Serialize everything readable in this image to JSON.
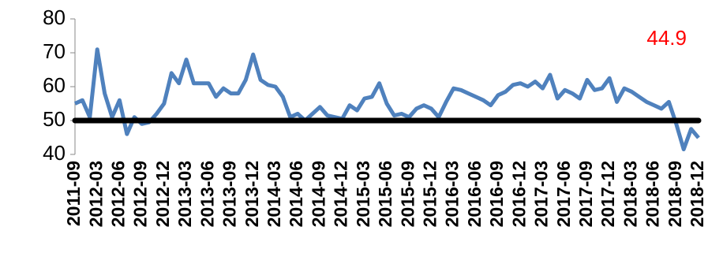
{
  "chart_data": {
    "type": "line",
    "categories": [
      "2011-09",
      null,
      null,
      "2012-03",
      null,
      null,
      "2012-06",
      null,
      null,
      "2012-09",
      null,
      null,
      "2012-12",
      null,
      null,
      "2013-03",
      null,
      null,
      "2013-06",
      null,
      null,
      "2013-09",
      null,
      null,
      "2013-12",
      null,
      null,
      "2014-03",
      null,
      null,
      "2014-06",
      null,
      null,
      "2014-09",
      null,
      null,
      "2014-12",
      null,
      null,
      "2015-03",
      null,
      null,
      "2015-06",
      null,
      null,
      "2015-09",
      null,
      null,
      "2015-12",
      null,
      null,
      "2016-03",
      null,
      null,
      "2016-06",
      null,
      null,
      "2016-09",
      null,
      null,
      "2016-12",
      null,
      null,
      "2017-03",
      null,
      null,
      "2017-06",
      null,
      null,
      "2017-09",
      null,
      null,
      "2017-12",
      null,
      null,
      "2018-03",
      null,
      null,
      "2018-06",
      null,
      null,
      "2018-09",
      null,
      null,
      "2018-12"
    ],
    "series": [
      {
        "color": "#4f81bd",
        "values": [
          55,
          56,
          51,
          71,
          58,
          51,
          56,
          46,
          51,
          49,
          49.5,
          52,
          55,
          64,
          61,
          68,
          61,
          61,
          61,
          57,
          59.5,
          58,
          58,
          62,
          69.5,
          62,
          60.5,
          60,
          57,
          51,
          52,
          50,
          52,
          54,
          51.5,
          51,
          50.5,
          54.5,
          53,
          56.5,
          57,
          61,
          55,
          51.5,
          52,
          51,
          53.5,
          54.5,
          53.5,
          51,
          55.5,
          59.5,
          59,
          58,
          57,
          56,
          54.5,
          57.5,
          58.5,
          60.5,
          61,
          60,
          61.5,
          59.5,
          63.5,
          56.5,
          59,
          58,
          56.5,
          62,
          59,
          59.5,
          62.5,
          55.5,
          59.5,
          58.5,
          57,
          55.5,
          54.5,
          53.5,
          55.5,
          49,
          41.5,
          47.5,
          44.9
        ]
      }
    ],
    "reference_line": {
      "value": 50,
      "color": "#000000"
    },
    "annotation": {
      "text": "44.9",
      "color": "#ff0000"
    },
    "ylim": [
      40,
      80
    ],
    "yticks": [
      40,
      50,
      60,
      70,
      80
    ]
  }
}
